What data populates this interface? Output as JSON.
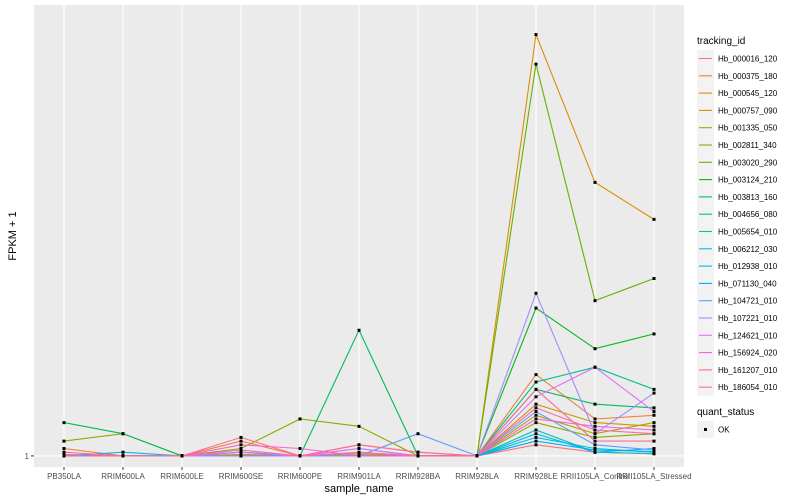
{
  "chart_data": {
    "type": "line",
    "xlabel": "sample_name",
    "ylabel": "FPKM + 1",
    "categories": [
      "PB350LA",
      "RRIM600LA",
      "RRIM600LE",
      "RRIM600SE",
      "RRIM600PE",
      "RRIM901LA",
      "RRIM928BA",
      "RRIM928LA",
      "RRIM928LE",
      "RRII105LA_Control",
      "RRII105LA_Stressed"
    ],
    "y_ticks": [
      {
        "label": "1",
        "value": 1
      }
    ],
    "ylim": [
      -0.5,
      62
    ],
    "grid": true,
    "legend": {
      "position": "right",
      "title": "tracking_id"
    },
    "status_legend": {
      "title": "quant_status",
      "entries": [
        {
          "label": "OK"
        }
      ]
    },
    "series": [
      {
        "name": "Hb_000016_120",
        "color": "#F8766D",
        "values": [
          1.2,
          1.0,
          1.0,
          1.1,
          1.0,
          1.0,
          1.0,
          1.0,
          2.5,
          1.5,
          1.3
        ]
      },
      {
        "name": "Hb_000375_180",
        "color": "#EC8239",
        "values": [
          2.0,
          1.0,
          1.0,
          3.0,
          1.0,
          2.5,
          1.5,
          1.0,
          12.0,
          6.0,
          6.5
        ]
      },
      {
        "name": "Hb_000545_120",
        "color": "#DB8E00",
        "values": [
          1.0,
          1.0,
          1.0,
          1.2,
          1.0,
          1.1,
          1.0,
          1.0,
          58.0,
          38.0,
          33.0
        ]
      },
      {
        "name": "Hb_000757_090",
        "color": "#C79800",
        "values": [
          1.0,
          1.0,
          1.0,
          1.5,
          1.0,
          1.3,
          1.0,
          1.0,
          8.0,
          5.5,
          5.0
        ]
      },
      {
        "name": "Hb_001335_050",
        "color": "#AEA200",
        "values": [
          1.0,
          1.0,
          1.0,
          1.0,
          1.0,
          1.0,
          1.0,
          1.0,
          6.5,
          4.0,
          5.5
        ]
      },
      {
        "name": "Hb_002811_340",
        "color": "#8FAA00",
        "values": [
          3.0,
          4.0,
          1.0,
          2.0,
          6.0,
          5.0,
          1.0,
          1.0,
          5.5,
          3.5,
          4.0
        ]
      },
      {
        "name": "Hb_003020_290",
        "color": "#64B200",
        "values": [
          1.0,
          1.0,
          1.0,
          1.0,
          1.0,
          1.0,
          1.0,
          1.0,
          54.0,
          22.0,
          25.0
        ]
      },
      {
        "name": "Hb_003124_210",
        "color": "#00B81B",
        "values": [
          1.0,
          1.0,
          1.0,
          1.0,
          1.0,
          1.0,
          1.0,
          1.0,
          21.0,
          15.5,
          17.5
        ]
      },
      {
        "name": "Hb_003813_160",
        "color": "#00BD5C",
        "values": [
          5.5,
          4.0,
          1.0,
          1.5,
          1.0,
          18.0,
          1.0,
          1.0,
          10.0,
          8.0,
          7.5
        ]
      },
      {
        "name": "Hb_004656_080",
        "color": "#00C08B",
        "values": [
          1.0,
          1.0,
          1.0,
          1.0,
          1.0,
          1.0,
          1.0,
          1.0,
          11.0,
          13.0,
          10.0
        ]
      },
      {
        "name": "Hb_005654_010",
        "color": "#00C1B2",
        "values": [
          1.0,
          1.0,
          1.0,
          1.0,
          1.0,
          1.0,
          1.0,
          1.0,
          4.5,
          1.5,
          1.3
        ]
      },
      {
        "name": "Hb_006212_030",
        "color": "#00BFD4",
        "values": [
          1.0,
          1.0,
          1.0,
          1.0,
          1.0,
          1.0,
          1.0,
          1.0,
          3.5,
          2.0,
          1.5
        ]
      },
      {
        "name": "Hb_012938_010",
        "color": "#00B8F3",
        "values": [
          1.0,
          1.5,
          1.0,
          1.5,
          1.0,
          2.0,
          1.0,
          1.0,
          4.0,
          1.5,
          2.0
        ]
      },
      {
        "name": "Hb_071130_040",
        "color": "#00ABFD",
        "values": [
          1.0,
          1.0,
          1.0,
          1.0,
          1.0,
          1.0,
          1.0,
          1.0,
          3.0,
          1.8,
          1.6
        ]
      },
      {
        "name": "Hb_104721_010",
        "color": "#619CFF",
        "values": [
          1.0,
          1.0,
          1.0,
          1.0,
          1.0,
          1.0,
          4.0,
          1.0,
          7.0,
          2.5,
          1.8
        ]
      },
      {
        "name": "Hb_107221_010",
        "color": "#A58AFF",
        "values": [
          1.0,
          1.0,
          1.0,
          1.0,
          1.0,
          1.0,
          1.0,
          1.0,
          23.0,
          4.0,
          9.5
        ]
      },
      {
        "name": "Hb_124621_010",
        "color": "#DF70F8",
        "values": [
          1.0,
          1.0,
          1.0,
          1.5,
          1.0,
          2.0,
          1.0,
          1.0,
          9.0,
          13.0,
          7.0
        ]
      },
      {
        "name": "Hb_156924_020",
        "color": "#FB61D7",
        "values": [
          1.0,
          1.0,
          1.0,
          2.5,
          2.0,
          1.0,
          1.0,
          1.0,
          6.0,
          5.0,
          4.5
        ]
      },
      {
        "name": "Hb_161207_010",
        "color": "#FF66A8",
        "values": [
          1.0,
          1.0,
          1.0,
          1.8,
          1.0,
          1.5,
          1.0,
          1.0,
          7.5,
          4.5,
          4.0
        ]
      },
      {
        "name": "Hb_186054_010",
        "color": "#FF6C91",
        "values": [
          1.5,
          1.0,
          1.0,
          3.5,
          1.0,
          2.5,
          1.5,
          1.0,
          10.0,
          3.0,
          3.0
        ]
      }
    ]
  }
}
